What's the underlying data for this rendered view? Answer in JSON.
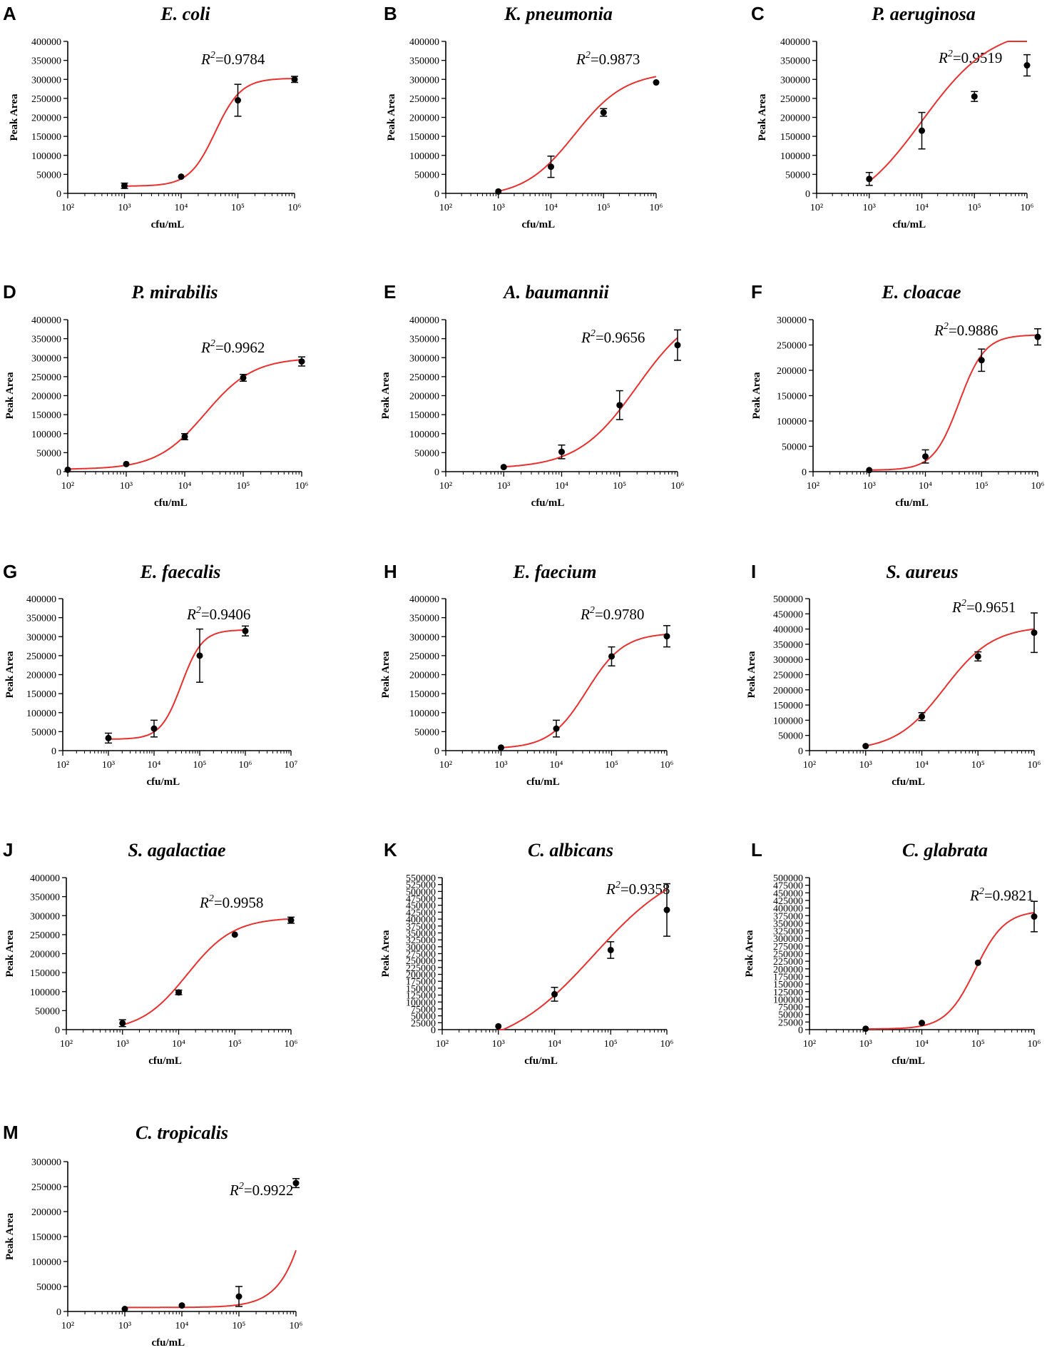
{
  "chart_data": [
    {
      "type": "scatter",
      "panel": "A",
      "title": "E. coli",
      "r2_label": "R",
      "r2_value": "=0.9784",
      "ylabel": "Peak Area",
      "xlabel": "cfu/mL",
      "xlog_range": [
        2,
        6
      ],
      "ylim": [
        0,
        400000
      ],
      "ytick_step": 50000,
      "points": [
        {
          "x": 1000,
          "y": 20000,
          "err": 7000
        },
        {
          "x": 10000,
          "y": 44000,
          "err": 2000
        },
        {
          "x": 100000,
          "y": 245000,
          "err": 42000
        },
        {
          "x": 1000000,
          "y": 300000,
          "err": 8000
        }
      ],
      "fit": {
        "bottom": 19000,
        "top": 303000,
        "logEC50": 4.6,
        "hill": 1.9
      }
    },
    {
      "type": "scatter",
      "panel": "B",
      "title": "K. pneumonia",
      "r2_label": "R",
      "r2_value": "=0.9873",
      "ylabel": "Peak Area",
      "xlabel": "cfu/mL",
      "xlog_range": [
        2,
        6
      ],
      "ylim": [
        0,
        400000
      ],
      "ytick_step": 50000,
      "points": [
        {
          "x": 1000,
          "y": 5000,
          "err": 1000
        },
        {
          "x": 10000,
          "y": 70000,
          "err": 28000
        },
        {
          "x": 100000,
          "y": 213000,
          "err": 10000
        },
        {
          "x": 1000000,
          "y": 292000,
          "err": 3000
        }
      ],
      "fit": {
        "bottom": -10000,
        "top": 320000,
        "logEC50": 4.45,
        "hill": 0.9
      }
    },
    {
      "type": "scatter",
      "panel": "C",
      "title": "P. aeruginosa",
      "r2_label": "R",
      "r2_value": "=0.9519",
      "ylabel": "Peak Area",
      "xlabel": "cfu/mL",
      "xlog_range": [
        2,
        6
      ],
      "ylim": [
        0,
        400000
      ],
      "ytick_step": 50000,
      "points": [
        {
          "x": 1000,
          "y": 38000,
          "err": 17000
        },
        {
          "x": 10000,
          "y": 165000,
          "err": 48000
        },
        {
          "x": 100000,
          "y": 255000,
          "err": 13000
        },
        {
          "x": 1000000,
          "y": 337000,
          "err": 28000
        }
      ],
      "fit": {
        "bottom": -60000,
        "top": 440000,
        "logEC50": 4.0,
        "hill": 0.65
      }
    },
    {
      "type": "scatter",
      "panel": "D",
      "title": "P. mirabilis",
      "r2_label": "R",
      "r2_value": "=0.9962",
      "ylabel": "Peak Area",
      "xlabel": "cfu/mL",
      "xlog_range": [
        2,
        6
      ],
      "ylim": [
        0,
        400000
      ],
      "ytick_step": 50000,
      "points": [
        {
          "x": 100,
          "y": 5000,
          "err": 1000
        },
        {
          "x": 1000,
          "y": 20000,
          "err": 2000
        },
        {
          "x": 10000,
          "y": 92000,
          "err": 8000
        },
        {
          "x": 100000,
          "y": 247000,
          "err": 9000
        },
        {
          "x": 1000000,
          "y": 290000,
          "err": 12000
        }
      ],
      "fit": {
        "bottom": 6000,
        "top": 300000,
        "logEC50": 4.35,
        "hill": 1.05
      }
    },
    {
      "type": "scatter",
      "panel": "E",
      "title": "A. baumannii",
      "r2_label": "R",
      "r2_value": "=0.9656",
      "ylabel": "Peak Area",
      "xlabel": "cfu/mL",
      "xlog_range": [
        2,
        6
      ],
      "ylim": [
        0,
        400000
      ],
      "ytick_step": 50000,
      "points": [
        {
          "x": 1000,
          "y": 12000,
          "err": 1000
        },
        {
          "x": 10000,
          "y": 52000,
          "err": 18000
        },
        {
          "x": 100000,
          "y": 175000,
          "err": 38000
        },
        {
          "x": 1000000,
          "y": 333000,
          "err": 40000
        }
      ],
      "fit": {
        "bottom": 8000,
        "top": 440000,
        "logEC50": 5.3,
        "hill": 0.85
      }
    },
    {
      "type": "scatter",
      "panel": "F",
      "title": "E. cloacae",
      "r2_label": "R",
      "r2_value": "=0.9886",
      "ylabel": "Peak Area",
      "xlabel": "cfu/mL",
      "xlog_range": [
        2,
        6
      ],
      "ylim": [
        0,
        300000
      ],
      "ytick_step": 50000,
      "points": [
        {
          "x": 1000,
          "y": 3000,
          "err": 1000
        },
        {
          "x": 10000,
          "y": 30000,
          "err": 13000
        },
        {
          "x": 100000,
          "y": 220000,
          "err": 22000
        },
        {
          "x": 1000000,
          "y": 266000,
          "err": 16000
        }
      ],
      "fit": {
        "bottom": 3000,
        "top": 270000,
        "logEC50": 4.6,
        "hill": 1.9
      }
    },
    {
      "type": "scatter",
      "panel": "G",
      "title": "E. faecalis",
      "r2_label": "R",
      "r2_value": "=0.9406",
      "ylabel": "Peak Area",
      "xlabel": "cfu/mL",
      "xlog_range": [
        2,
        7
      ],
      "ylim": [
        0,
        400000
      ],
      "ytick_step": 50000,
      "points": [
        {
          "x": 1000,
          "y": 33000,
          "err": 13000
        },
        {
          "x": 10000,
          "y": 58000,
          "err": 22000
        },
        {
          "x": 100000,
          "y": 250000,
          "err": 70000
        },
        {
          "x": 1000000,
          "y": 315000,
          "err": 13000
        }
      ],
      "fit": {
        "bottom": 30000,
        "top": 318000,
        "logEC50": 4.6,
        "hill": 1.9
      }
    },
    {
      "type": "scatter",
      "panel": "H",
      "title": "E. faecium",
      "r2_label": "R",
      "r2_value": "=0.9780",
      "ylabel": "Peak Area",
      "xlabel": "cfu/mL",
      "xlog_range": [
        2,
        6
      ],
      "ylim": [
        0,
        400000
      ],
      "ytick_step": 50000,
      "points": [
        {
          "x": 1000,
          "y": 8000,
          "err": 1000
        },
        {
          "x": 10000,
          "y": 58000,
          "err": 22000
        },
        {
          "x": 100000,
          "y": 248000,
          "err": 25000
        },
        {
          "x": 1000000,
          "y": 301000,
          "err": 28000
        }
      ],
      "fit": {
        "bottom": 5000,
        "top": 310000,
        "logEC50": 4.55,
        "hill": 1.3
      }
    },
    {
      "type": "scatter",
      "panel": "I",
      "title": "S. aureus",
      "r2_label": "R",
      "r2_value": "=0.9651",
      "ylabel": "Peak Area",
      "xlabel": "cfu/mL",
      "xlog_range": [
        2,
        6
      ],
      "ylim": [
        0,
        500000
      ],
      "ytick_step": 50000,
      "points": [
        {
          "x": 1000,
          "y": 15000,
          "err": 1000
        },
        {
          "x": 10000,
          "y": 112000,
          "err": 13000
        },
        {
          "x": 100000,
          "y": 310000,
          "err": 15000
        },
        {
          "x": 1000000,
          "y": 388000,
          "err": 65000
        }
      ],
      "fit": {
        "bottom": 0,
        "top": 410000,
        "logEC50": 4.4,
        "hill": 1.0
      }
    },
    {
      "type": "scatter",
      "panel": "J",
      "title": "S. agalactiae",
      "r2_label": "R",
      "r2_value": "=0.9958",
      "ylabel": "Peak Area",
      "xlabel": "cfu/mL",
      "xlog_range": [
        2,
        6
      ],
      "ylim": [
        0,
        400000
      ],
      "ytick_step": 50000,
      "points": [
        {
          "x": 1000,
          "y": 17000,
          "err": 9000
        },
        {
          "x": 10000,
          "y": 98000,
          "err": 6000
        },
        {
          "x": 100000,
          "y": 250000,
          "err": 2000
        },
        {
          "x": 1000000,
          "y": 288000,
          "err": 8000
        }
      ],
      "fit": {
        "bottom": -5000,
        "top": 295000,
        "logEC50": 4.15,
        "hill": 1.05
      }
    },
    {
      "type": "scatter",
      "panel": "K",
      "title": "C. albicans",
      "r2_label": "R",
      "r2_value": "=0.9358",
      "ylabel": "Peak Area",
      "xlabel": "cfu/mL",
      "xlog_range": [
        2,
        6
      ],
      "ylim": [
        0,
        550000
      ],
      "ytick_step": 25000,
      "points": [
        {
          "x": 1000,
          "y": 12000,
          "err": 1000
        },
        {
          "x": 10000,
          "y": 128000,
          "err": 25000
        },
        {
          "x": 100000,
          "y": 288000,
          "err": 30000
        },
        {
          "x": 1000000,
          "y": 433000,
          "err": 95000
        }
      ],
      "fit": {
        "bottom": -80000,
        "top": 620000,
        "logEC50": 4.7,
        "hill": 0.55
      }
    },
    {
      "type": "scatter",
      "panel": "L",
      "title": "C. glabrata",
      "r2_label": "R",
      "r2_value": "=0.9821",
      "ylabel": "Peak Area",
      "xlabel": "cfu/mL",
      "xlog_range": [
        2,
        6
      ],
      "ylim": [
        0,
        500000
      ],
      "ytick_step": 25000,
      "points": [
        {
          "x": 1000,
          "y": 3000,
          "err": 1000
        },
        {
          "x": 10000,
          "y": 22000,
          "err": 2000
        },
        {
          "x": 100000,
          "y": 220000,
          "err": 3000
        },
        {
          "x": 1000000,
          "y": 372000,
          "err": 50000
        }
      ],
      "fit": {
        "bottom": 2000,
        "top": 392000,
        "logEC50": 4.95,
        "hill": 1.65
      }
    },
    {
      "type": "scatter",
      "panel": "M",
      "title": "C. tropicalis",
      "r2_label": "R",
      "r2_value": "=0.9922",
      "ylabel": "Peak Area",
      "xlabel": "cfu/mL",
      "xlog_range": [
        2,
        6
      ],
      "ylim": [
        0,
        300000
      ],
      "ytick_step": 50000,
      "points": [
        {
          "x": 1000,
          "y": 5000,
          "err": 1000
        },
        {
          "x": 10000,
          "y": 12000,
          "err": 2000
        },
        {
          "x": 100000,
          "y": 30000,
          "err": 20000
        },
        {
          "x": 1000000,
          "y": 257000,
          "err": 9000
        }
      ],
      "fit": {
        "bottom": 8000,
        "top": 1500000,
        "logEC50": 6.8,
        "hill": 1.35
      }
    }
  ]
}
